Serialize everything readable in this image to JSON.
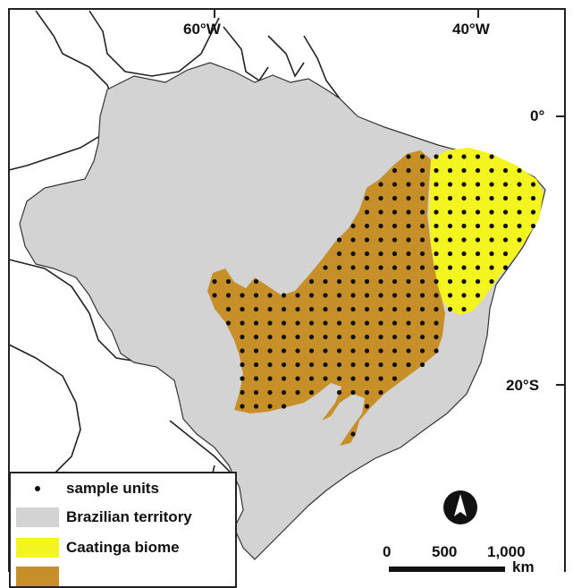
{
  "map": {
    "longitude_labels": [
      "60°W",
      "40°W"
    ],
    "latitude_labels": [
      "0°",
      "20°S"
    ]
  },
  "legend": {
    "items": [
      {
        "symbol": "dot",
        "label": "sample units"
      },
      {
        "symbol": "swatch",
        "color": "#d3d3d3",
        "label": "Brazilian territory"
      },
      {
        "symbol": "swatch",
        "color": "#f4f41f",
        "label": "Caatinga biome"
      },
      {
        "symbol": "swatch",
        "color": "#c78f28",
        "label": ""
      }
    ]
  },
  "scale_bar": {
    "ticks": [
      "0",
      "500",
      "1,000"
    ],
    "unit": "km"
  },
  "north_arrow": {
    "icon": "north-arrow-icon"
  },
  "colors": {
    "brazil": "#d3d3d3",
    "caatinga": "#f4f41f",
    "cerrado": "#c78f28",
    "borders": "#222222",
    "sample_dots": "#111111"
  }
}
